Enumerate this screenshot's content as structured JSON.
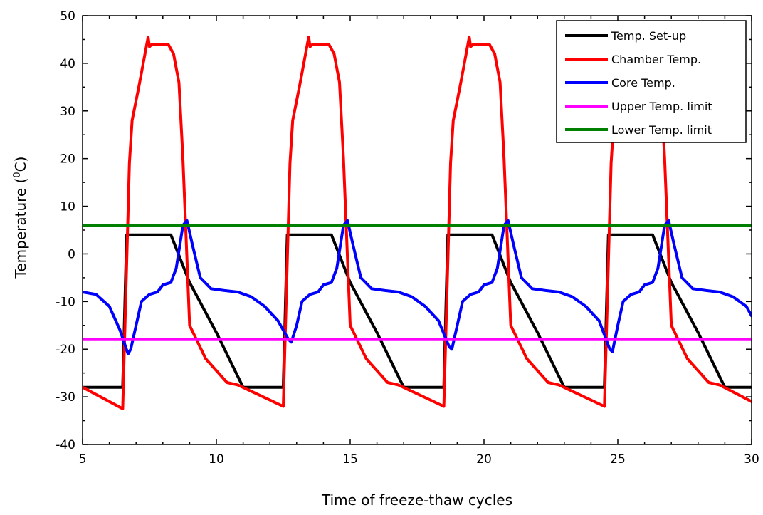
{
  "chart_data": {
    "type": "line",
    "xlabel": "Time of freeze-thaw cycles",
    "ylabel_main": "Temperature (",
    "ylabel_sup": "0",
    "ylabel_end": "C)",
    "xlim": [
      5,
      30
    ],
    "ylim": [
      -40,
      50
    ],
    "xticks": [
      5,
      10,
      15,
      20,
      25,
      30
    ],
    "yticks": [
      -40,
      -30,
      -20,
      -10,
      0,
      10,
      20,
      30,
      40,
      50
    ],
    "x_minor_step": 1,
    "y_minor_step": 5,
    "legend_position": "top-right",
    "grid": false,
    "series": [
      {
        "name": "Temp. Set-up",
        "color": "#000000",
        "x": [
          5,
          6.5,
          6.65,
          8.3,
          9,
          10,
          11,
          12.5,
          12.65,
          14.3,
          15,
          16,
          17,
          18.5,
          18.65,
          20.3,
          21,
          22,
          23,
          24.5,
          24.65,
          26.3,
          27,
          28,
          29,
          30
        ],
        "y": [
          -28,
          -28,
          4,
          4,
          -6,
          -16.5,
          -28,
          -28,
          4,
          4,
          -6,
          -16.5,
          -28,
          -28,
          4,
          4,
          -6,
          -16.5,
          -28,
          -28,
          4,
          4,
          -6,
          -16.5,
          -28,
          -28
        ]
      },
      {
        "name": "Chamber Temp.",
        "color": "#ff0000",
        "x": [
          5,
          6.5,
          6.75,
          6.85,
          7.1,
          7.4,
          7.45,
          7.5,
          7.6,
          8.2,
          8.4,
          8.6,
          8.75,
          9.0,
          9.6,
          10.4,
          10.8,
          12.5,
          12.75,
          12.85,
          13.1,
          13.4,
          13.45,
          13.5,
          13.6,
          14.2,
          14.4,
          14.6,
          14.75,
          15.0,
          15.6,
          16.4,
          16.8,
          18.5,
          18.75,
          18.85,
          19.1,
          19.4,
          19.45,
          19.5,
          19.6,
          20.2,
          20.4,
          20.6,
          20.75,
          21.0,
          21.6,
          22.4,
          22.8,
          24.5,
          24.75,
          24.85,
          25.1,
          25.4,
          25.45,
          25.5,
          25.6,
          26.2,
          26.4,
          26.6,
          26.75,
          27.0,
          27.6,
          28.4,
          28.8,
          30
        ],
        "y": [
          -28,
          -32.5,
          19,
          28,
          35,
          44,
          45.5,
          43.5,
          44,
          44,
          42,
          36,
          20,
          -15,
          -22,
          -27,
          -27.5,
          -32,
          19,
          28,
          35,
          44,
          45.5,
          43.5,
          44,
          44,
          42,
          36,
          20,
          -15,
          -22,
          -27,
          -27.5,
          -32,
          19,
          28,
          35,
          44,
          45.5,
          43.5,
          44,
          44,
          42,
          36,
          20,
          -15,
          -22,
          -27,
          -27.5,
          -32,
          19,
          28,
          35,
          44,
          45.5,
          43.5,
          44,
          44,
          42,
          36,
          20,
          -15,
          -22,
          -27,
          -27.5,
          -31
        ]
      },
      {
        "name": "Core Temp.",
        "color": "#0000ff",
        "x": [
          5,
          5.5,
          6.0,
          6.4,
          6.7,
          6.8,
          7.0,
          7.2,
          7.5,
          7.8,
          8.0,
          8.3,
          8.5,
          8.75,
          8.9,
          9.1,
          9.4,
          9.8,
          10.3,
          10.8,
          11.3,
          11.8,
          12.3,
          12.7,
          12.8,
          13.0,
          13.2,
          13.5,
          13.8,
          14.0,
          14.3,
          14.5,
          14.75,
          14.9,
          15.1,
          15.4,
          15.8,
          16.3,
          16.8,
          17.3,
          17.8,
          18.3,
          18.7,
          18.8,
          19.0,
          19.2,
          19.5,
          19.8,
          20.0,
          20.3,
          20.5,
          20.75,
          20.9,
          21.1,
          21.4,
          21.8,
          22.3,
          22.8,
          23.3,
          23.8,
          24.3,
          24.7,
          24.8,
          25.0,
          25.2,
          25.5,
          25.8,
          26.0,
          26.3,
          26.5,
          26.75,
          26.9,
          27.1,
          27.4,
          27.8,
          28.3,
          28.8,
          29.3,
          29.8,
          30
        ],
        "y": [
          -8,
          -8.5,
          -11,
          -16,
          -21,
          -20,
          -15,
          -10,
          -8.5,
          -8,
          -6.5,
          -6,
          -3,
          6,
          7,
          2,
          -5,
          -7.3,
          -7.7,
          -8,
          -9,
          -11,
          -14,
          -18,
          -18.5,
          -15,
          -10,
          -8.5,
          -8,
          -6.5,
          -6,
          -3,
          6,
          7,
          2,
          -5,
          -7.3,
          -7.7,
          -8,
          -9,
          -11,
          -14,
          -19.5,
          -20,
          -15,
          -10,
          -8.5,
          -8,
          -6.5,
          -6,
          -3,
          6,
          7,
          2,
          -5,
          -7.3,
          -7.7,
          -8,
          -9,
          -11,
          -14,
          -20,
          -20.5,
          -15,
          -10,
          -8.5,
          -8,
          -6.5,
          -6,
          -3,
          6,
          7,
          2,
          -5,
          -7.3,
          -7.7,
          -8,
          -9,
          -11,
          -13
        ]
      },
      {
        "name": "Upper Temp. limit",
        "color": "#ff00ff",
        "x": [
          5,
          30
        ],
        "y": [
          -18,
          -18
        ]
      },
      {
        "name": "Lower Temp. limit",
        "color": "#008000",
        "x": [
          5,
          30
        ],
        "y": [
          6,
          6
        ]
      }
    ]
  }
}
